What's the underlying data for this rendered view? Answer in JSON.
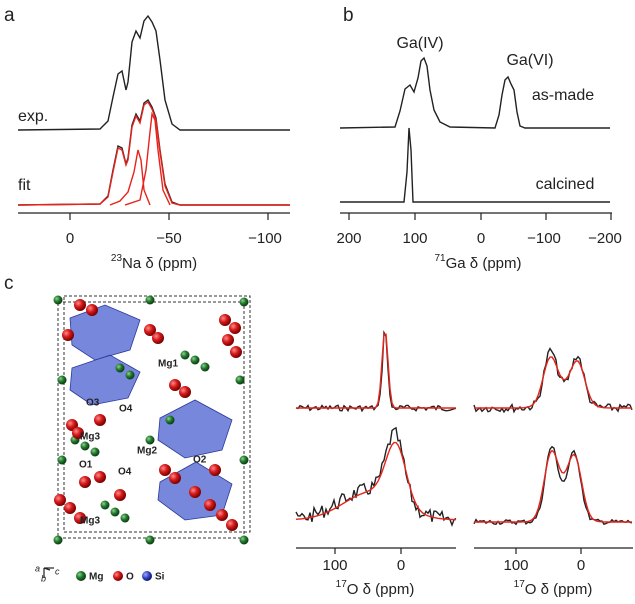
{
  "panels": {
    "a": {
      "label": "a",
      "traces": [
        "exp.",
        "fit"
      ],
      "ticks": [
        "0",
        "−50",
        "−100"
      ],
      "axis_sup": "23",
      "axis_label": "Na δ (ppm)"
    },
    "b": {
      "label": "b",
      "peaks": [
        "Ga(IV)",
        "Ga(VI)"
      ],
      "traces": [
        "as-made",
        "calcined"
      ],
      "ticks": [
        "200",
        "100",
        "0",
        "−100",
        "−200"
      ],
      "axis_sup": "71",
      "axis_label": "Ga δ (ppm)"
    },
    "c": {
      "label": "c",
      "sites": [
        "Mg1",
        "O3",
        "O4",
        "Mg3",
        "Mg2",
        "O1",
        "O4",
        "O2",
        "Mg3"
      ],
      "legend": [
        "Mg",
        "O",
        "Si"
      ],
      "axes": [
        "b",
        "a",
        "c"
      ],
      "ticks_left": [
        "100",
        "0"
      ],
      "ticks_right": [
        "100",
        "0"
      ],
      "axis_sup": "17",
      "axis_label": "O δ (ppm)"
    }
  }
}
